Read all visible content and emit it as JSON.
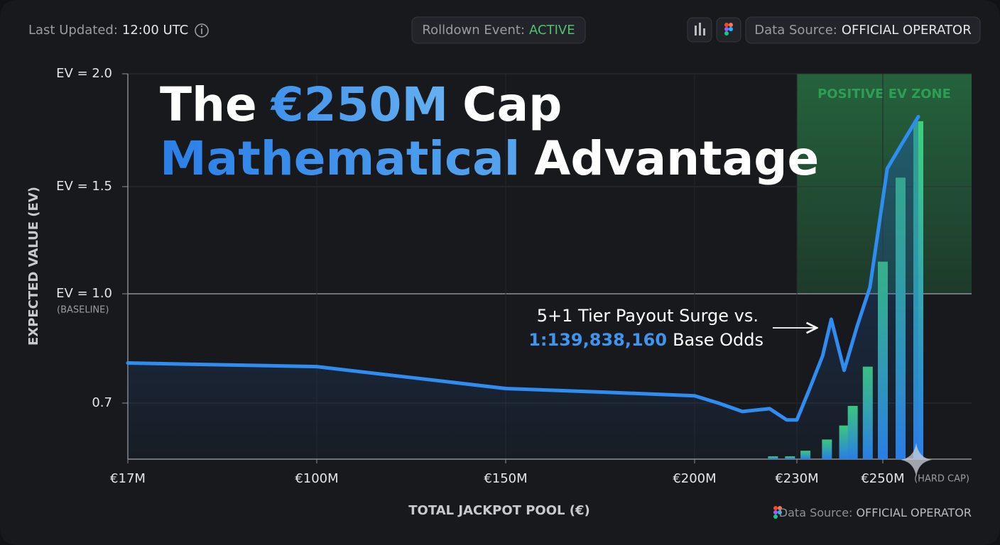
{
  "header": {
    "last_updated": {
      "label": "Last Updated:",
      "value": "12:00 UTC"
    },
    "event": {
      "label": "Rolldown Event:",
      "value": "ACTIVE"
    },
    "source": {
      "label": "Data Source:",
      "value": "OFFICIAL OPERATOR"
    }
  },
  "chart_data": {
    "type": "line",
    "title": {
      "line1": [
        "The",
        "€250M",
        "Cap"
      ],
      "line2": [
        "Mathematical",
        "Advantage"
      ]
    },
    "y_label": "EXPECTED VALUE (EV)",
    "x_label": "TOTAL JACKPOT POOL (€)",
    "baseline_note": "(BASELINE)",
    "cap_note": "(HARD CAP)",
    "annotation": {
      "line1": "5+1 Tier Payout Surge vs.",
      "odds": "1:139,838,160",
      "rest": "Base Odds"
    },
    "zone": {
      "label": "POSITIVE EV ZONE",
      "x": [
        230,
        270
      ],
      "y": [
        1.0,
        2.0
      ],
      "color": "#2f9e55"
    },
    "xlim": [
      17,
      270
    ],
    "xticks": [
      {
        "value": 17,
        "label": "€17M"
      },
      {
        "value": 100,
        "label": "€100M"
      },
      {
        "value": 150,
        "label": "€150M"
      },
      {
        "value": 200,
        "label": "€200M"
      },
      {
        "value": 230,
        "label": "€230M"
      },
      {
        "value": 250,
        "label": "€250M"
      }
    ],
    "ylim": [
      0.5,
      2.0
    ],
    "yticks": [
      0.7,
      {
        "value": 1.0,
        "label": "EV = 1.0"
      },
      {
        "value": 1.5,
        "label": "EV = 1.5"
      },
      {
        "value": 2.0,
        "label": "EV = 2.0"
      }
    ],
    "grid": true,
    "series": [
      {
        "type": "line",
        "color": "#2f8cf0",
        "x": [
          17,
          100,
          125,
          150,
          176,
          200,
          207,
          214,
          222,
          227,
          230,
          233,
          236,
          238,
          241,
          244,
          247,
          251,
          254,
          258
        ],
        "values": [
          0.81,
          0.8,
          0.77,
          0.74,
          0.73,
          0.72,
          0.7,
          0.67,
          0.68,
          0.64,
          0.64,
          0.74,
          0.83,
          0.93,
          0.79,
          0.91,
          1.03,
          1.58,
          1.68,
          1.81
        ]
      },
      {
        "type": "bar",
        "color": "#3fd07a",
        "x": [
          223,
          228,
          232,
          237,
          241,
          243,
          246.5,
          250,
          254,
          258
        ],
        "values": [
          0.51,
          0.51,
          0.53,
          0.57,
          0.62,
          0.69,
          0.8,
          1.15,
          1.54,
          1.79
        ]
      }
    ]
  },
  "footer": {
    "source": {
      "label": "Data Source:",
      "value": "OFFICIAL OPERATOR"
    }
  }
}
